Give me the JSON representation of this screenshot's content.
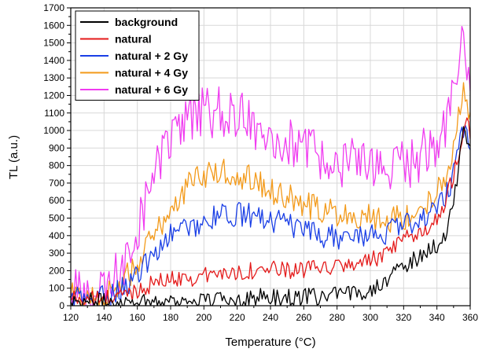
{
  "chart_data": {
    "type": "line",
    "title": "",
    "xlabel": "Temperature (°C)",
    "ylabel": "TL (a.u.)",
    "xlim": [
      120,
      360
    ],
    "ylim": [
      0,
      1700
    ],
    "xticks": [
      120,
      140,
      160,
      180,
      200,
      220,
      240,
      260,
      280,
      300,
      320,
      340,
      360
    ],
    "yticks": [
      0,
      100,
      200,
      300,
      400,
      500,
      600,
      700,
      800,
      900,
      1000,
      1100,
      1200,
      1300,
      1400,
      1500,
      1600,
      1700
    ],
    "x_minor_step": 10,
    "y_minor_step": 50,
    "grid": true,
    "legend_position": "top-left",
    "draw_order": [
      "natural + 6 Gy",
      "natural + 4 Gy",
      "natural + 2 Gy",
      "natural",
      "background"
    ],
    "series": [
      {
        "name": "background",
        "color": "#000000",
        "x": [
          120,
          125,
          130,
          135,
          140,
          145,
          150,
          155,
          160,
          165,
          170,
          175,
          180,
          185,
          190,
          195,
          200,
          205,
          210,
          215,
          220,
          225,
          230,
          235,
          240,
          245,
          250,
          255,
          260,
          265,
          270,
          275,
          280,
          285,
          290,
          295,
          300,
          305,
          310,
          315,
          320,
          325,
          330,
          335,
          340,
          345,
          350,
          352,
          354,
          356,
          358,
          360
        ],
        "y": [
          40,
          30,
          20,
          30,
          20,
          25,
          30,
          25,
          30,
          25,
          30,
          25,
          30,
          25,
          30,
          30,
          35,
          30,
          35,
          40,
          40,
          45,
          45,
          50,
          50,
          45,
          50,
          45,
          50,
          50,
          55,
          55,
          60,
          60,
          70,
          80,
          100,
          120,
          160,
          180,
          230,
          250,
          290,
          320,
          350,
          400,
          600,
          700,
          850,
          1000,
          950,
          900
        ],
        "noise": 50
      },
      {
        "name": "natural",
        "color": "#e41a1a",
        "x": [
          120,
          125,
          130,
          135,
          140,
          145,
          150,
          155,
          160,
          165,
          170,
          175,
          180,
          185,
          190,
          195,
          200,
          205,
          210,
          215,
          220,
          225,
          230,
          235,
          240,
          245,
          250,
          255,
          260,
          265,
          270,
          275,
          280,
          285,
          290,
          295,
          300,
          305,
          310,
          315,
          320,
          325,
          330,
          335,
          340,
          345,
          350,
          352,
          354,
          356,
          358,
          360
        ],
        "y": [
          50,
          40,
          40,
          35,
          40,
          50,
          60,
          70,
          90,
          110,
          130,
          140,
          150,
          160,
          160,
          160,
          170,
          180,
          180,
          190,
          190,
          200,
          200,
          210,
          210,
          200,
          200,
          210,
          200,
          210,
          210,
          220,
          220,
          230,
          240,
          250,
          260,
          270,
          300,
          330,
          370,
          400,
          420,
          450,
          500,
          600,
          750,
          850,
          900,
          1000,
          1050,
          1000
        ],
        "noise": 50
      },
      {
        "name": "natural + 2 Gy",
        "color": "#1a3fe6",
        "x": [
          120,
          125,
          130,
          135,
          140,
          145,
          150,
          155,
          160,
          165,
          170,
          175,
          180,
          185,
          190,
          195,
          200,
          205,
          210,
          215,
          220,
          225,
          230,
          235,
          240,
          245,
          250,
          255,
          260,
          265,
          270,
          275,
          280,
          285,
          290,
          295,
          300,
          305,
          310,
          315,
          320,
          325,
          330,
          335,
          340,
          345,
          350,
          352,
          354,
          356,
          358,
          360
        ],
        "y": [
          50,
          40,
          40,
          40,
          50,
          70,
          100,
          130,
          180,
          230,
          300,
          360,
          400,
          430,
          450,
          460,
          480,
          500,
          510,
          520,
          520,
          520,
          510,
          500,
          490,
          480,
          460,
          440,
          420,
          410,
          400,
          400,
          390,
          390,
          390,
          400,
          400,
          410,
          420,
          430,
          460,
          480,
          500,
          530,
          560,
          620,
          750,
          850,
          950,
          1000,
          1050,
          900
        ],
        "noise": 70
      },
      {
        "name": "natural + 4 Gy",
        "color": "#f39a1a",
        "x": [
          120,
          125,
          130,
          135,
          140,
          145,
          150,
          155,
          160,
          165,
          170,
          175,
          180,
          185,
          190,
          195,
          200,
          205,
          210,
          215,
          220,
          225,
          230,
          235,
          240,
          245,
          250,
          255,
          260,
          265,
          270,
          275,
          280,
          285,
          290,
          295,
          300,
          305,
          310,
          315,
          320,
          325,
          330,
          335,
          340,
          345,
          350,
          352,
          354,
          356,
          358,
          360
        ],
        "y": [
          60,
          50,
          50,
          50,
          60,
          80,
          130,
          180,
          250,
          320,
          400,
          480,
          550,
          620,
          680,
          720,
          740,
          750,
          760,
          760,
          750,
          740,
          720,
          690,
          660,
          640,
          620,
          600,
          580,
          560,
          550,
          540,
          530,
          530,
          520,
          520,
          510,
          500,
          500,
          500,
          510,
          520,
          550,
          600,
          650,
          750,
          900,
          1000,
          1150,
          1200,
          1150,
          1050
        ],
        "noise": 80
      },
      {
        "name": "natural + 6 Gy",
        "color": "#f03cf0",
        "x": [
          120,
          125,
          130,
          135,
          140,
          145,
          150,
          155,
          160,
          165,
          170,
          175,
          180,
          185,
          190,
          195,
          200,
          205,
          210,
          215,
          220,
          225,
          230,
          235,
          240,
          245,
          250,
          255,
          260,
          265,
          270,
          275,
          280,
          285,
          290,
          295,
          300,
          305,
          310,
          315,
          320,
          325,
          330,
          335,
          340,
          345,
          350,
          352,
          354,
          356,
          358,
          360
        ],
        "y": [
          80,
          60,
          60,
          60,
          80,
          120,
          200,
          300,
          450,
          600,
          750,
          850,
          950,
          1000,
          1050,
          1080,
          1100,
          1100,
          1100,
          1090,
          1080,
          1060,
          1040,
          1020,
          1000,
          960,
          930,
          900,
          880,
          860,
          850,
          840,
          830,
          820,
          810,
          800,
          790,
          780,
          770,
          780,
          790,
          820,
          860,
          900,
          950,
          1050,
          1250,
          1350,
          1450,
          1500,
          1400,
          1300
        ],
        "noise": 150
      }
    ]
  }
}
